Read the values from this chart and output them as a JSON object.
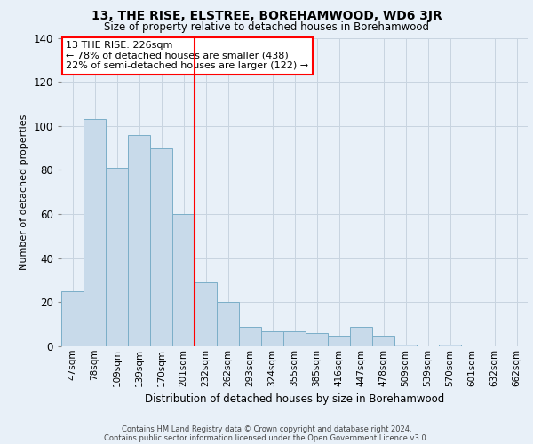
{
  "title": "13, THE RISE, ELSTREE, BOREHAMWOOD, WD6 3JR",
  "subtitle": "Size of property relative to detached houses in Borehamwood",
  "xlabel": "Distribution of detached houses by size in Borehamwood",
  "ylabel": "Number of detached properties",
  "bar_labels": [
    "47sqm",
    "78sqm",
    "109sqm",
    "139sqm",
    "170sqm",
    "201sqm",
    "232sqm",
    "262sqm",
    "293sqm",
    "324sqm",
    "355sqm",
    "385sqm",
    "416sqm",
    "447sqm",
    "478sqm",
    "509sqm",
    "539sqm",
    "570sqm",
    "601sqm",
    "632sqm",
    "662sqm"
  ],
  "bar_values": [
    25,
    103,
    81,
    96,
    90,
    60,
    29,
    20,
    9,
    7,
    7,
    6,
    5,
    9,
    5,
    1,
    0,
    1,
    0,
    0,
    0
  ],
  "bar_color": "#c8daea",
  "bar_edge_color": "#7baec8",
  "highlight_line_index": 6,
  "annotation_line1": "13 THE RISE: 226sqm",
  "annotation_line2": "← 78% of detached houses are smaller (438)",
  "annotation_line3": "22% of semi-detached houses are larger (122) →",
  "annotation_box_edge_color": "red",
  "footer_line1": "Contains HM Land Registry data © Crown copyright and database right 2024.",
  "footer_line2": "Contains public sector information licensed under the Open Government Licence v3.0.",
  "bg_color": "#e8f0f8",
  "plot_bg_color": "#e8f0f8",
  "ylim": [
    0,
    140
  ],
  "grid_color": "#c8d4e0",
  "title_fontsize": 10,
  "subtitle_fontsize": 8.5,
  "ylabel_fontsize": 8,
  "xlabel_fontsize": 8.5,
  "tick_fontsize": 7.5,
  "ann_fontsize": 8,
  "footer_fontsize": 6
}
